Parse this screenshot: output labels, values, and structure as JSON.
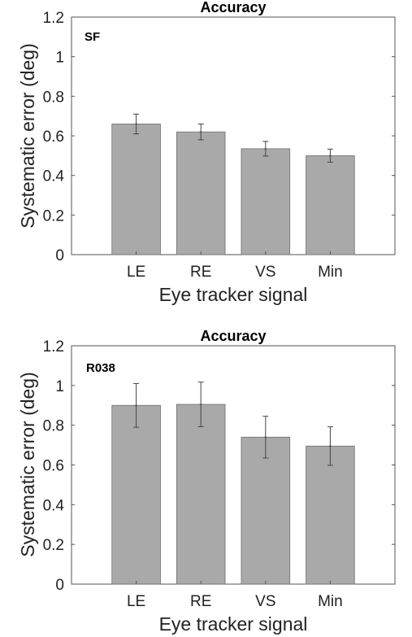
{
  "chart_data": [
    {
      "type": "bar",
      "title": "Accuracy",
      "panel_label": "SF",
      "xlabel": "Eye tracker signal",
      "ylabel": "Systematic error (deg)",
      "categories": [
        "LE",
        "RE",
        "VS",
        "Min"
      ],
      "values": [
        0.66,
        0.62,
        0.535,
        0.5
      ],
      "errors": [
        0.05,
        0.04,
        0.037,
        0.033
      ],
      "ylim": [
        0,
        1.2
      ],
      "yticks": [
        "0",
        "0.2",
        "0.4",
        "0.6",
        "0.8",
        "1",
        "1.2"
      ],
      "grid": false,
      "bar_color": "#a9a9a9"
    },
    {
      "type": "bar",
      "title": "Accuracy",
      "panel_label": "R038",
      "xlabel": "Eye tracker signal",
      "ylabel": "Systematic error (deg)",
      "categories": [
        "LE",
        "RE",
        "VS",
        "Min"
      ],
      "values": [
        0.9,
        0.905,
        0.74,
        0.695
      ],
      "errors": [
        0.11,
        0.112,
        0.105,
        0.097
      ],
      "ylim": [
        0,
        1.2
      ],
      "yticks": [
        "0",
        "0.2",
        "0.4",
        "0.6",
        "0.8",
        "1",
        "1.2"
      ],
      "grid": false,
      "bar_color": "#a9a9a9"
    }
  ]
}
